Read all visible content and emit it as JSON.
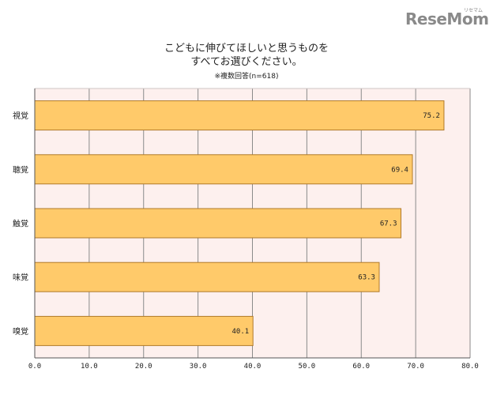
{
  "logo": {
    "text": "ReseMom",
    "ruby": "リセマム"
  },
  "title": {
    "line1": "こどもに伸びてほしいと思うものを",
    "line2": "すべてお選びください。"
  },
  "note": "※複数回答(n=618)",
  "colors": {
    "bar_fill": "#FFCA6A",
    "bar_stroke": "#B07A2A",
    "plot_bg": "#FDF0EE",
    "grid": "#8a8a8a"
  },
  "chart_data": {
    "type": "bar",
    "orientation": "horizontal",
    "categories": [
      "視覚",
      "聴覚",
      "触覚",
      "味覚",
      "嗅覚"
    ],
    "values": [
      75.2,
      69.4,
      67.3,
      63.3,
      40.1
    ],
    "value_labels": [
      "75.2",
      "69.4",
      "67.3",
      "63.3",
      "40.1"
    ],
    "xlim": [
      0,
      80
    ],
    "xticks": [
      "0.0",
      "10.0",
      "20.0",
      "30.0",
      "40.0",
      "50.0",
      "60.0",
      "70.0",
      "80.0"
    ],
    "grid": true
  }
}
